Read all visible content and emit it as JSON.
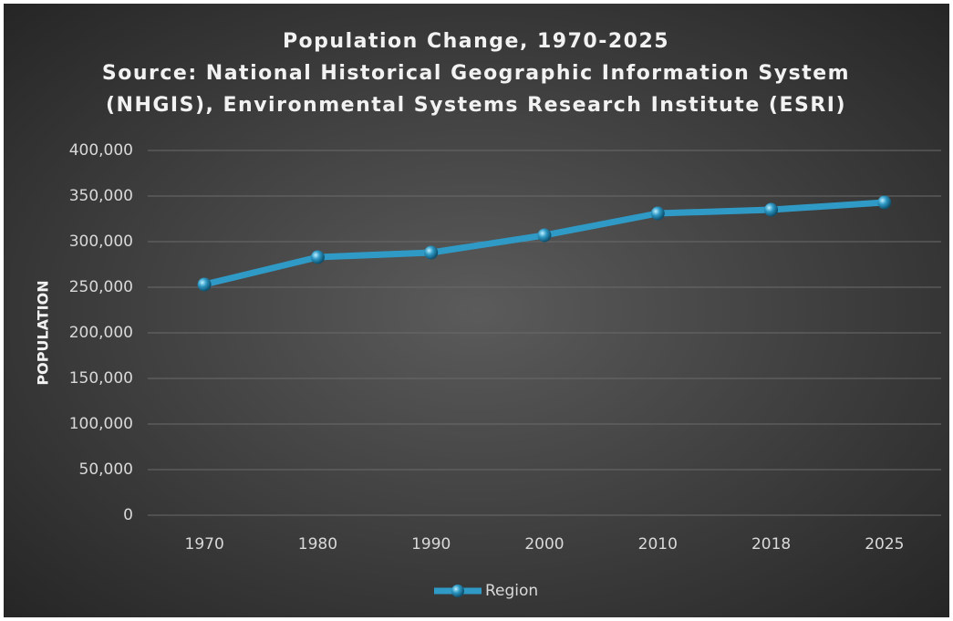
{
  "chart_data": {
    "type": "line",
    "title": "Population Change, 1970-2025",
    "subtitle": [
      "Source: National Historical Geographic Information System",
      "(NHGIS), Environmental Systems Research Institute (ESRI)"
    ],
    "ylabel": "POPULATION",
    "categories": [
      "1970",
      "1980",
      "1990",
      "2000",
      "2010",
      "2018",
      "2025"
    ],
    "series": [
      {
        "name": "Region",
        "color": "#2f9ac6",
        "values": [
          253000,
          283000,
          288000,
          307000,
          331000,
          335000,
          343000
        ]
      }
    ],
    "ylim": [
      0,
      400000
    ],
    "yticks": [
      0,
      {
        "value": 50000,
        "label": "50,000"
      },
      {
        "value": 100000,
        "label": "100,000"
      },
      {
        "value": 150000,
        "label": "150,000"
      },
      {
        "value": 200000,
        "label": "200,000"
      },
      {
        "value": 250000,
        "label": "250,000"
      },
      {
        "value": 300000,
        "label": "300,000"
      },
      {
        "value": 350000,
        "label": "350,000"
      },
      {
        "value": 400000,
        "label": "400,000"
      }
    ],
    "grid": true,
    "legend": "bottom"
  }
}
